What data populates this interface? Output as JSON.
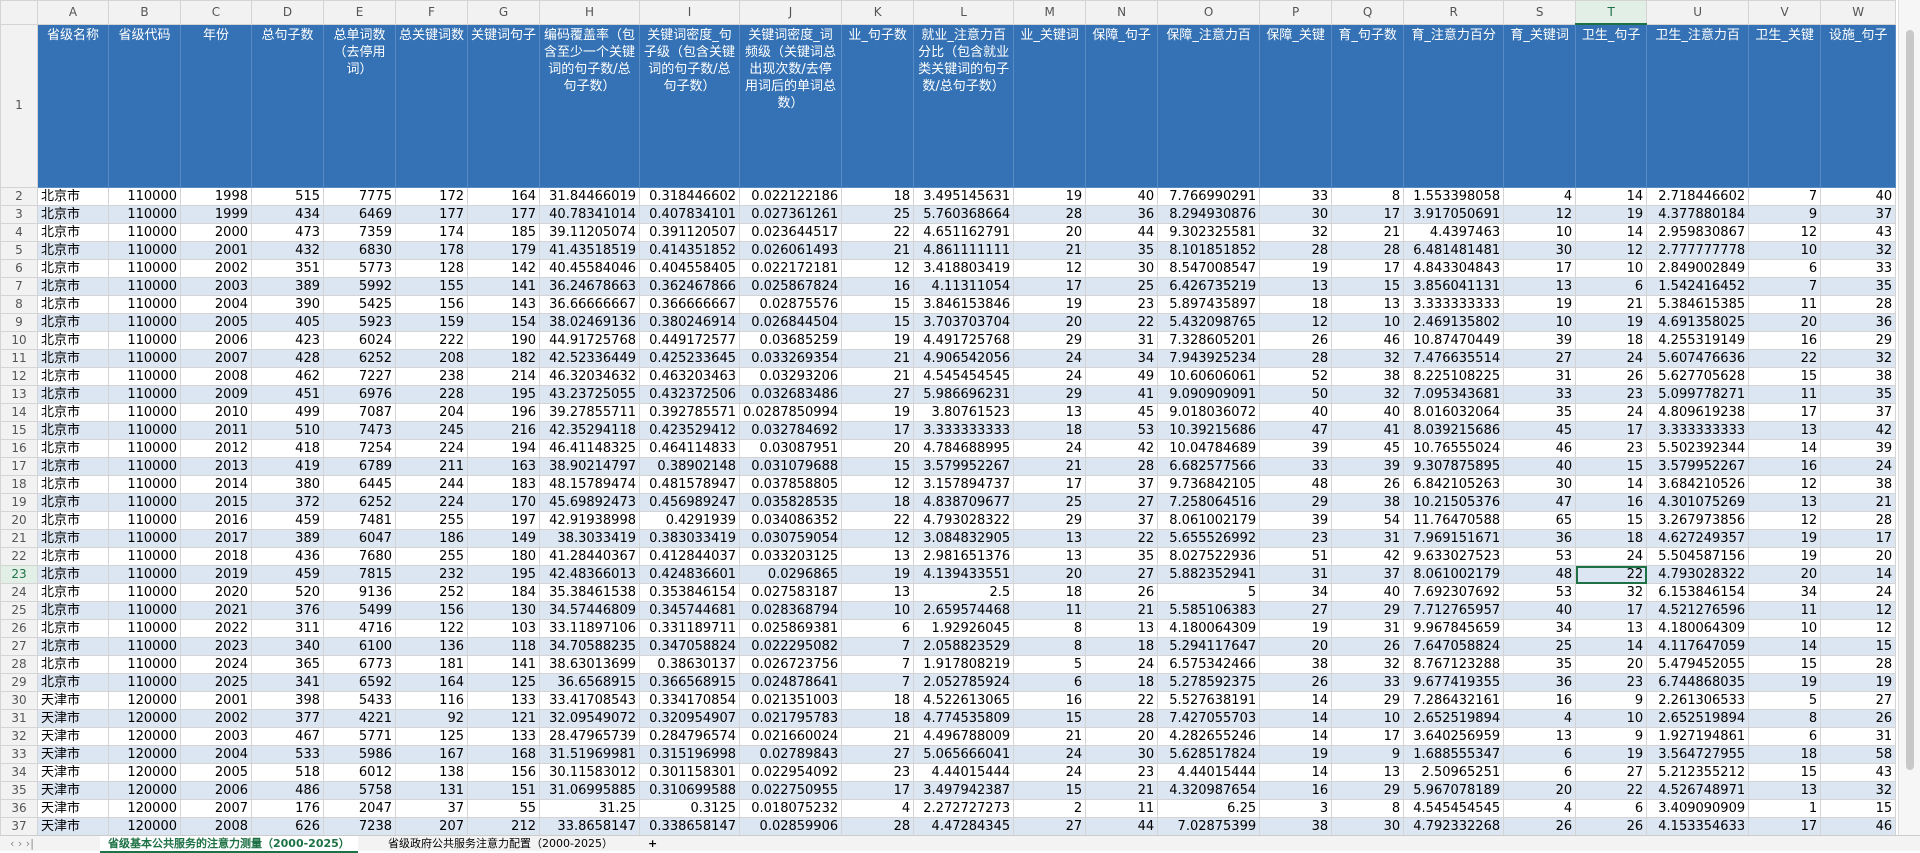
{
  "columns": [
    "A",
    "B",
    "C",
    "D",
    "E",
    "F",
    "G",
    "H",
    "I",
    "J",
    "K",
    "L",
    "M",
    "N",
    "O",
    "P",
    "Q",
    "R",
    "S",
    "T",
    "U",
    "V",
    "W"
  ],
  "row_numbers": [
    1,
    2,
    3,
    4,
    5,
    6,
    7,
    8,
    9,
    10,
    11,
    12,
    13,
    14,
    15,
    16,
    17,
    18,
    19,
    20,
    21,
    22,
    23,
    24,
    25,
    26,
    27,
    28,
    29,
    30,
    31,
    32,
    33,
    34,
    35,
    36,
    37
  ],
  "headers": [
    "省级名称",
    "省级代码",
    "年份",
    "总句子数",
    "总单词数（去停用词）",
    "总关键词数",
    "关键词句子",
    "编码覆盖率（包含至少一个关键词的句子数/总句子数）",
    "关键词密度_句子级（包含关键词的句子数/总句子数）",
    "关键词密度_词频级（关键词总出现次数/去停用词后的单词总数）",
    "业_句子数",
    "就业_注意力百分比（包含就业类关键词的句子数/总句子数）",
    "业_关键词",
    "保障_句子",
    "保障_注意力百",
    "保障_关键",
    "育_句子数",
    "育_注意力百分",
    "育_关键词",
    "卫生_句子",
    "卫生_注意力百",
    "卫生_关键",
    "设施_句子"
  ],
  "rows": [
    [
      "北京市",
      110000,
      1998,
      515,
      7775,
      172,
      164,
      31.84466019,
      0.318446602,
      0.022122186,
      18,
      3.495145631,
      19,
      40,
      7.766990291,
      33,
      8,
      1.553398058,
      4,
      14,
      2.718446602,
      7,
      40
    ],
    [
      "北京市",
      110000,
      1999,
      434,
      6469,
      177,
      177,
      40.78341014,
      0.407834101,
      0.027361261,
      25,
      5.760368664,
      28,
      36,
      8.294930876,
      30,
      17,
      3.917050691,
      12,
      19,
      4.377880184,
      9,
      37
    ],
    [
      "北京市",
      110000,
      2000,
      473,
      7359,
      174,
      185,
      39.11205074,
      0.391120507,
      0.023644517,
      22,
      4.651162791,
      20,
      44,
      9.302325581,
      32,
      21,
      4.4397463,
      10,
      14,
      2.959830867,
      12,
      43
    ],
    [
      "北京市",
      110000,
      2001,
      432,
      6830,
      178,
      179,
      41.43518519,
      0.414351852,
      0.026061493,
      21,
      4.861111111,
      21,
      35,
      8.101851852,
      28,
      28,
      6.481481481,
      30,
      12,
      2.777777778,
      10,
      32
    ],
    [
      "北京市",
      110000,
      2002,
      351,
      5773,
      128,
      142,
      40.45584046,
      0.404558405,
      0.022172181,
      12,
      3.418803419,
      12,
      30,
      8.547008547,
      19,
      17,
      4.843304843,
      17,
      10,
      2.849002849,
      6,
      33
    ],
    [
      "北京市",
      110000,
      2003,
      389,
      5992,
      155,
      141,
      36.24678663,
      0.362467866,
      0.025867824,
      16,
      4.11311054,
      17,
      25,
      6.426735219,
      13,
      15,
      3.856041131,
      13,
      6,
      1.542416452,
      7,
      35
    ],
    [
      "北京市",
      110000,
      2004,
      390,
      5425,
      156,
      143,
      36.66666667,
      0.366666667,
      0.02875576,
      15,
      3.846153846,
      19,
      23,
      5.897435897,
      18,
      13,
      3.333333333,
      19,
      21,
      5.384615385,
      11,
      28
    ],
    [
      "北京市",
      110000,
      2005,
      405,
      5923,
      159,
      154,
      38.02469136,
      0.380246914,
      0.026844504,
      15,
      3.703703704,
      20,
      22,
      5.432098765,
      12,
      10,
      2.469135802,
      10,
      19,
      4.691358025,
      20,
      36
    ],
    [
      "北京市",
      110000,
      2006,
      423,
      6024,
      222,
      190,
      44.91725768,
      0.449172577,
      0.03685259,
      19,
      4.491725768,
      29,
      31,
      7.328605201,
      26,
      46,
      10.87470449,
      39,
      18,
      4.255319149,
      16,
      29
    ],
    [
      "北京市",
      110000,
      2007,
      428,
      6252,
      208,
      182,
      42.52336449,
      0.425233645,
      0.033269354,
      21,
      4.906542056,
      24,
      34,
      7.943925234,
      28,
      32,
      7.476635514,
      27,
      24,
      5.607476636,
      22,
      32
    ],
    [
      "北京市",
      110000,
      2008,
      462,
      7227,
      238,
      214,
      46.32034632,
      0.463203463,
      0.03293206,
      21,
      4.545454545,
      24,
      49,
      10.60606061,
      52,
      38,
      8.225108225,
      31,
      26,
      5.627705628,
      15,
      38
    ],
    [
      "北京市",
      110000,
      2009,
      451,
      6976,
      228,
      195,
      43.23725055,
      0.432372506,
      0.032683486,
      27,
      5.986696231,
      29,
      41,
      9.090909091,
      50,
      32,
      7.095343681,
      33,
      23,
      5.099778271,
      11,
      35
    ],
    [
      "北京市",
      110000,
      2010,
      499,
      7087,
      204,
      196,
      39.27855711,
      0.392785571,
      0.0287850994,
      19,
      3.80761523,
      13,
      45,
      9.018036072,
      40,
      40,
      8.016032064,
      35,
      24,
      4.809619238,
      17,
      37
    ],
    [
      "北京市",
      110000,
      2011,
      510,
      7473,
      245,
      216,
      42.35294118,
      0.423529412,
      0.032784692,
      17,
      3.333333333,
      18,
      53,
      10.39215686,
      47,
      41,
      8.039215686,
      45,
      17,
      3.333333333,
      13,
      42
    ],
    [
      "北京市",
      110000,
      2012,
      418,
      7254,
      224,
      194,
      46.41148325,
      0.464114833,
      0.03087951,
      20,
      4.784688995,
      24,
      42,
      10.04784689,
      39,
      45,
      10.76555024,
      46,
      23,
      5.502392344,
      14,
      39
    ],
    [
      "北京市",
      110000,
      2013,
      419,
      6789,
      211,
      163,
      38.90214797,
      0.38902148,
      0.031079688,
      15,
      3.579952267,
      21,
      28,
      6.682577566,
      33,
      39,
      9.307875895,
      40,
      15,
      3.579952267,
      16,
      24
    ],
    [
      "北京市",
      110000,
      2014,
      380,
      6445,
      244,
      183,
      48.15789474,
      0.481578947,
      0.037858805,
      12,
      3.157894737,
      17,
      37,
      9.736842105,
      48,
      26,
      6.842105263,
      30,
      14,
      3.684210526,
      12,
      38
    ],
    [
      "北京市",
      110000,
      2015,
      372,
      6252,
      224,
      170,
      45.69892473,
      0.456989247,
      0.035828535,
      18,
      4.838709677,
      25,
      27,
      7.258064516,
      29,
      38,
      10.21505376,
      47,
      16,
      4.301075269,
      13,
      21
    ],
    [
      "北京市",
      110000,
      2016,
      459,
      7481,
      255,
      197,
      42.91938998,
      0.4291939,
      0.034086352,
      22,
      4.793028322,
      29,
      37,
      8.061002179,
      39,
      54,
      11.76470588,
      65,
      15,
      3.267973856,
      12,
      28
    ],
    [
      "北京市",
      110000,
      2017,
      389,
      6047,
      186,
      149,
      38.3033419,
      0.383033419,
      0.030759054,
      12,
      3.084832905,
      13,
      22,
      5.655526992,
      23,
      31,
      7.969151671,
      36,
      18,
      4.627249357,
      19,
      17
    ],
    [
      "北京市",
      110000,
      2018,
      436,
      7680,
      255,
      180,
      41.28440367,
      0.412844037,
      0.033203125,
      13,
      2.981651376,
      13,
      35,
      8.027522936,
      51,
      42,
      9.633027523,
      53,
      24,
      5.504587156,
      19,
      20
    ],
    [
      "北京市",
      110000,
      2019,
      459,
      7815,
      232,
      195,
      42.48366013,
      0.424836601,
      0.0296865,
      19,
      4.139433551,
      20,
      27,
      5.882352941,
      31,
      37,
      8.061002179,
      48,
      22,
      4.793028322,
      20,
      14
    ],
    [
      "北京市",
      110000,
      2020,
      520,
      9136,
      252,
      184,
      35.38461538,
      0.353846154,
      0.027583187,
      13,
      2.5,
      18,
      26,
      5,
      34,
      40,
      7.692307692,
      53,
      32,
      6.153846154,
      34,
      24
    ],
    [
      "北京市",
      110000,
      2021,
      376,
      5499,
      156,
      130,
      34.57446809,
      0.345744681,
      0.028368794,
      10,
      2.659574468,
      11,
      21,
      5.585106383,
      27,
      29,
      7.712765957,
      40,
      17,
      4.521276596,
      11,
      12
    ],
    [
      "北京市",
      110000,
      2022,
      311,
      4716,
      122,
      103,
      33.11897106,
      0.331189711,
      0.025869381,
      6,
      1.92926045,
      8,
      13,
      4.180064309,
      19,
      31,
      9.967845659,
      34,
      13,
      4.180064309,
      10,
      12
    ],
    [
      "北京市",
      110000,
      2023,
      340,
      6100,
      136,
      118,
      34.70588235,
      0.347058824,
      0.022295082,
      7,
      2.058823529,
      8,
      18,
      5.294117647,
      20,
      26,
      7.647058824,
      25,
      14,
      4.117647059,
      14,
      15
    ],
    [
      "北京市",
      110000,
      2024,
      365,
      6773,
      181,
      141,
      38.63013699,
      0.38630137,
      0.026723756,
      7,
      1.917808219,
      5,
      24,
      6.575342466,
      38,
      32,
      8.767123288,
      35,
      20,
      5.479452055,
      15,
      28
    ],
    [
      "北京市",
      110000,
      2025,
      341,
      6592,
      164,
      125,
      36.6568915,
      0.366568915,
      0.024878641,
      7,
      2.052785924,
      6,
      18,
      5.278592375,
      26,
      33,
      9.677419355,
      36,
      23,
      6.744868035,
      19,
      19
    ],
    [
      "天津市",
      120000,
      2001,
      398,
      5433,
      116,
      133,
      33.41708543,
      0.334170854,
      0.021351003,
      18,
      4.522613065,
      16,
      22,
      5.527638191,
      14,
      29,
      7.286432161,
      16,
      9,
      2.261306533,
      5,
      27
    ],
    [
      "天津市",
      120000,
      2002,
      377,
      4221,
      92,
      121,
      32.09549072,
      0.320954907,
      0.021795783,
      18,
      4.774535809,
      15,
      28,
      7.427055703,
      14,
      10,
      2.652519894,
      4,
      10,
      2.652519894,
      8,
      26
    ],
    [
      "天津市",
      120000,
      2003,
      467,
      5771,
      125,
      133,
      28.47965739,
      0.284796574,
      0.021660024,
      21,
      4.496788009,
      21,
      20,
      4.282655246,
      14,
      17,
      3.640256959,
      13,
      9,
      1.927194861,
      6,
      31
    ],
    [
      "天津市",
      120000,
      2004,
      533,
      5986,
      167,
      168,
      31.51969981,
      0.315196998,
      0.02789843,
      27,
      5.065666041,
      24,
      30,
      5.628517824,
      19,
      9,
      1.688555347,
      6,
      19,
      3.564727955,
      18,
      58
    ],
    [
      "天津市",
      120000,
      2005,
      518,
      6012,
      138,
      156,
      30.11583012,
      0.301158301,
      0.022954092,
      23,
      4.44015444,
      24,
      23,
      4.44015444,
      14,
      13,
      2.50965251,
      6,
      27,
      5.212355212,
      15,
      43
    ],
    [
      "天津市",
      120000,
      2006,
      486,
      5758,
      131,
      151,
      31.06995885,
      0.310699588,
      0.022750955,
      17,
      3.497942387,
      15,
      21,
      4.320987654,
      16,
      29,
      5.967078189,
      20,
      22,
      4.526748971,
      13,
      32
    ],
    [
      "天津市",
      120000,
      2007,
      176,
      2047,
      37,
      55,
      31.25,
      0.3125,
      0.018075232,
      4,
      2.272727273,
      2,
      11,
      6.25,
      3,
      8,
      4.545454545,
      4,
      6,
      3.409090909,
      1,
      15
    ],
    [
      "天津市",
      120000,
      2008,
      626,
      7238,
      207,
      212,
      33.8658147,
      0.338658147,
      0.02859906,
      28,
      4.47284345,
      27,
      44,
      7.02875399,
      38,
      30,
      4.792332268,
      26,
      26,
      4.153354633,
      17,
      46
    ]
  ],
  "sheet_tabs": [
    "省级基本公共服务的注意力测量（2000-2025）",
    "省级政府公共服务注意力配置（2000-2025）"
  ]
}
